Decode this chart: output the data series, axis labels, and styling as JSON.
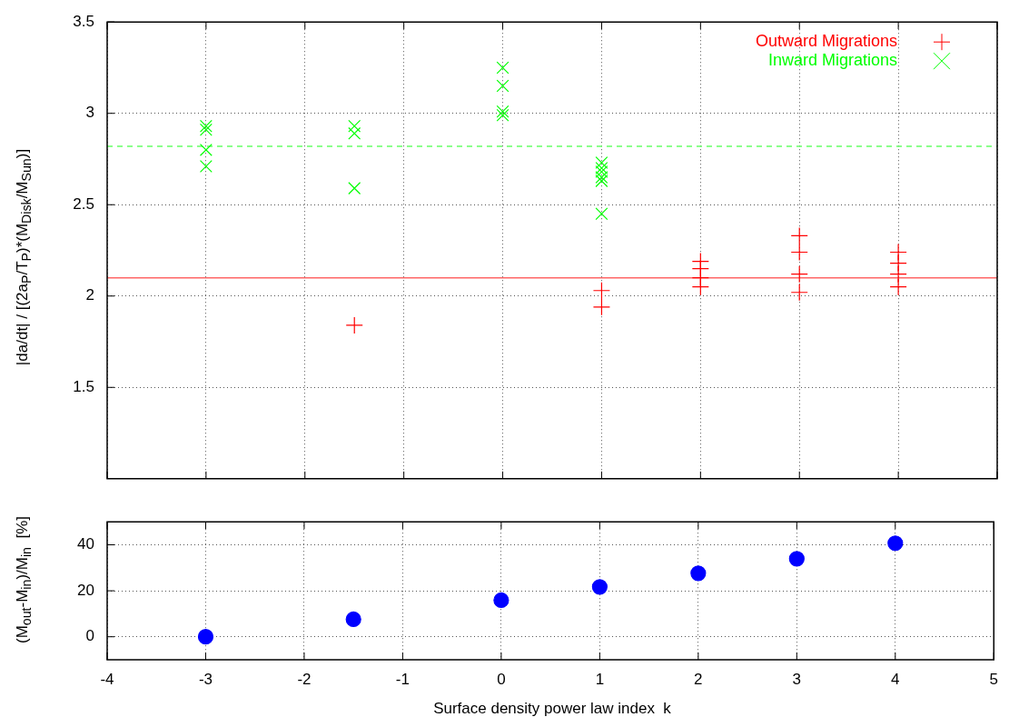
{
  "chart_data": [
    {
      "type": "scatter",
      "ylabel": "|da/dt| / [(2a$_{P}$/T$_{P}$)*(M$_{Disk}$/M$_{Sun}$)]",
      "xlim": [
        -4,
        5
      ],
      "xticks": [
        -4,
        -3,
        -2,
        -1,
        0,
        1,
        2,
        3,
        4,
        5
      ],
      "ylim": [
        1,
        3.5
      ],
      "yticks": [
        1.5,
        2,
        2.5,
        3,
        3.5
      ],
      "tick_labels": "y",
      "grid": true,
      "legend": "top right",
      "series": [
        {
          "name": "Outward Migrations",
          "color": "#ff0000",
          "marker": "cross",
          "x": [
            -1.5,
            1,
            1,
            2,
            2,
            2,
            2,
            3,
            3,
            3,
            3,
            4,
            4,
            4,
            4
          ],
          "values": [
            1.84,
            2.03,
            1.94,
            2.19,
            2.15,
            2.1,
            2.05,
            2.33,
            2.24,
            2.12,
            2.02,
            2.24,
            2.18,
            2.12,
            2.05
          ]
        },
        {
          "name": "Inward Migrations",
          "color": "#00ff00",
          "marker": "x",
          "x": [
            -3,
            -3,
            -3,
            -3,
            -1.5,
            -1.5,
            -1.5,
            0,
            0,
            0,
            0,
            1,
            1,
            1,
            1,
            1,
            1
          ],
          "values": [
            2.93,
            2.91,
            2.8,
            2.71,
            2.93,
            2.89,
            2.59,
            3.25,
            3.15,
            3.01,
            2.99,
            2.73,
            2.7,
            2.68,
            2.65,
            2.63,
            2.45
          ]
        }
      ],
      "ref_lines": [
        {
          "axis": "y",
          "value": 2.82,
          "color": "#66ff66",
          "line_style": "dashed"
        },
        {
          "axis": "y",
          "value": 2.1,
          "color": "#ff6666",
          "line_style": "solid"
        }
      ]
    },
    {
      "type": "scatter",
      "xlabel": "Surface density power law index  k",
      "ylabel": "(M$_{out}$-M$_{in}$)/M$_{in}$  [%]",
      "xlim": [
        -4,
        5
      ],
      "xticks": [
        -4,
        -3,
        -2,
        -1,
        0,
        1,
        2,
        3,
        4,
        5
      ],
      "ylim": [
        -10,
        50
      ],
      "yticks": [
        0,
        20,
        40
      ],
      "grid": true,
      "legend": false,
      "series": [
        {
          "color": "#0000ff",
          "marker": "circle",
          "x": [
            -3,
            -1.5,
            0,
            1,
            2,
            3,
            4
          ],
          "values": [
            0,
            7.6,
            15.9,
            21.7,
            27.6,
            33.9,
            40.7
          ]
        }
      ]
    }
  ]
}
